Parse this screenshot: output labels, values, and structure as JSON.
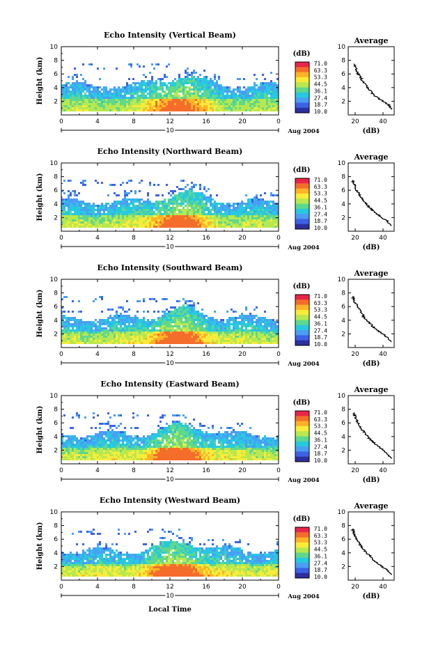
{
  "xlabel": "Local Time",
  "date_label": "Aug 2004",
  "day_label": "10",
  "colorbar": {
    "unit_label": "(dB)",
    "levels": [
      "71.0",
      "63.3",
      "53.3",
      "44.5",
      "36.1",
      "27.4",
      "18.7",
      "10.0"
    ],
    "colors": [
      "#e8254a",
      "#f46d2b",
      "#ffb327",
      "#f8ec3a",
      "#b8e84f",
      "#5fd88c",
      "#27c9df",
      "#4a9ef5",
      "#3d62e6",
      "#2d2f9e"
    ]
  },
  "chart_data": [
    {
      "type": "heatmap",
      "title": "Echo Intensity (Vertical Beam)",
      "ylabel": "Height (km)",
      "xlim": [
        0,
        24
      ],
      "ylim": [
        0,
        10
      ],
      "xticks": [
        "0",
        "4",
        "8",
        "12",
        "16",
        "20",
        "0"
      ],
      "yticks": [
        "2",
        "4",
        "6",
        "8",
        "10"
      ],
      "profile": {
        "title": "Average",
        "xlabel": "(dB)",
        "xticks": [
          "20",
          "40"
        ],
        "xlim": [
          15,
          48
        ],
        "height": [
          0.8,
          1.5,
          2.0,
          2.5,
          3.0,
          3.5,
          4.0,
          4.5,
          5.0,
          5.5,
          6.0,
          6.5,
          7.0,
          7.5
        ],
        "db": [
          46,
          44,
          40,
          36,
          33,
          31,
          29,
          27,
          25,
          24,
          22,
          21,
          20,
          19
        ]
      }
    },
    {
      "type": "heatmap",
      "title": "Echo Intensity (Northward Beam)",
      "ylabel": "Height (km)",
      "xlim": [
        0,
        24
      ],
      "ylim": [
        0,
        10
      ],
      "xticks": [
        "0",
        "4",
        "8",
        "12",
        "16",
        "20",
        "0"
      ],
      "yticks": [
        "2",
        "4",
        "6",
        "8",
        "10"
      ],
      "profile": {
        "title": "Average",
        "xlabel": "(dB)",
        "xticks": [
          "20",
          "40"
        ],
        "xlim": [
          15,
          48
        ],
        "height": [
          0.8,
          1.5,
          2.0,
          2.5,
          3.0,
          3.5,
          4.0,
          4.5,
          5.0,
          5.5,
          6.0,
          6.5,
          7.0,
          7.5
        ],
        "db": [
          46,
          43,
          39,
          36,
          33,
          30,
          28,
          26,
          24,
          23,
          21,
          20,
          19,
          18
        ]
      }
    },
    {
      "type": "heatmap",
      "title": "Echo Intensity (Southward Beam)",
      "ylabel": "Height (km)",
      "xlim": [
        0,
        24
      ],
      "ylim": [
        0,
        10
      ],
      "xticks": [
        "0",
        "4",
        "8",
        "12",
        "16",
        "20",
        "0"
      ],
      "yticks": [
        "2",
        "4",
        "6",
        "8",
        "10"
      ],
      "profile": {
        "title": "Average",
        "xlabel": "(dB)",
        "xticks": [
          "20",
          "40"
        ],
        "xlim": [
          15,
          48
        ],
        "height": [
          0.8,
          1.5,
          2.0,
          2.5,
          3.0,
          3.5,
          4.0,
          4.5,
          5.0,
          5.5,
          6.0,
          6.5,
          7.0,
          7.5
        ],
        "db": [
          46,
          43,
          40,
          36,
          33,
          31,
          28,
          26,
          25,
          23,
          22,
          20,
          19,
          18
        ]
      }
    },
    {
      "type": "heatmap",
      "title": "Echo Intensity (Eastward Beam)",
      "ylabel": "Height (km)",
      "xlim": [
        0,
        24
      ],
      "ylim": [
        0,
        10
      ],
      "xticks": [
        "0",
        "4",
        "8",
        "12",
        "16",
        "20",
        "0"
      ],
      "yticks": [
        "2",
        "4",
        "6",
        "8",
        "10"
      ],
      "profile": {
        "title": "Average",
        "xlabel": "(dB)",
        "xticks": [
          "20",
          "40"
        ],
        "xlim": [
          15,
          48
        ],
        "height": [
          0.8,
          1.5,
          2.0,
          2.5,
          3.0,
          3.5,
          4.0,
          4.5,
          5.0,
          5.5,
          6.0,
          6.5,
          7.0,
          7.5
        ],
        "db": [
          46,
          43,
          40,
          37,
          34,
          31,
          29,
          27,
          25,
          23,
          22,
          21,
          20,
          19
        ]
      }
    },
    {
      "type": "heatmap",
      "title": "Echo Intensity (Westward Beam)",
      "ylabel": "Height (km)",
      "xlim": [
        0,
        24
      ],
      "ylim": [
        0,
        10
      ],
      "xticks": [
        "0",
        "4",
        "8",
        "12",
        "16",
        "20",
        "0"
      ],
      "yticks": [
        "2",
        "4",
        "6",
        "8",
        "10"
      ],
      "profile": {
        "title": "Average",
        "xlabel": "(dB)",
        "xticks": [
          "20",
          "40"
        ],
        "xlim": [
          15,
          48
        ],
        "height": [
          0.8,
          1.5,
          2.0,
          2.5,
          3.0,
          3.5,
          4.0,
          4.5,
          5.0,
          5.5,
          6.0,
          6.5,
          7.0,
          7.5
        ],
        "db": [
          46,
          43,
          39,
          36,
          33,
          31,
          28,
          26,
          24,
          23,
          21,
          20,
          19,
          18
        ]
      }
    }
  ]
}
